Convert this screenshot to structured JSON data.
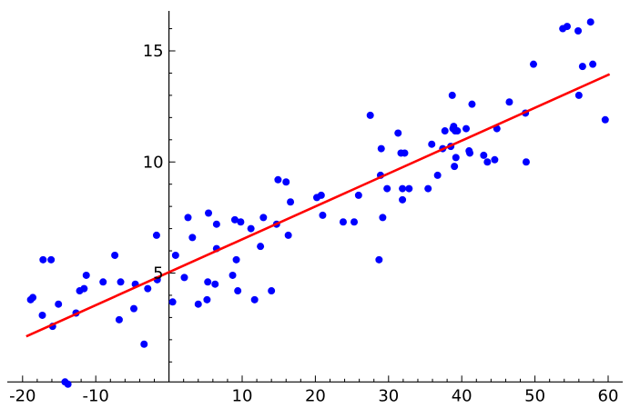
{
  "chart_data": {
    "type": "scatter",
    "title": "",
    "xlabel": "",
    "ylabel": "",
    "xlim": [
      -21,
      62
    ],
    "ylim": [
      0.1,
      16.8
    ],
    "x_ticks": [
      -20,
      -10,
      10,
      20,
      30,
      40,
      50,
      60
    ],
    "x_tick_labels": [
      "-20",
      "-10",
      "10",
      "20",
      "30",
      "40",
      "50",
      "60"
    ],
    "y_ticks": [
      5,
      10,
      15
    ],
    "y_tick_labels": [
      "5",
      "10",
      "15"
    ],
    "grid": false,
    "legend": "none",
    "axes_cross_at": {
      "x": 0,
      "y": 0.1
    },
    "colors": {
      "points": "#0000ff",
      "fit_line": "#ff0000",
      "axes": "#000000"
    },
    "series": [
      {
        "kind": "points",
        "x": [
          -18.9,
          -18.6,
          -17.3,
          -17.2,
          -16.1,
          -15.9,
          -15.1,
          -14.2,
          -13.8,
          -12.7,
          -12.2,
          -11.6,
          -11.3,
          -9,
          -7.4,
          -6.8,
          -6.6,
          -4.8,
          -4.6,
          -3.4,
          -2.9,
          -1.7,
          -1.6,
          0.5,
          0.9,
          2.1,
          2.6,
          3.2,
          4,
          5.2,
          5.3,
          5.4,
          6.3,
          6.5,
          6.5,
          8.7,
          9,
          9.2,
          9.4,
          9.8,
          11.2,
          11.7,
          12.5,
          12.9,
          14,
          14.7,
          14.9,
          16,
          16.3,
          16.6,
          20.2,
          20.8,
          21,
          23.8,
          25.3,
          25.9,
          27.5,
          28.7,
          28.9,
          29,
          29.2,
          29.8,
          31.3,
          31.7,
          31.9,
          31.9,
          32.2,
          32.8,
          35.4,
          35.9,
          36.7,
          37.4,
          37.7,
          38.5,
          38.7,
          38.8,
          38.9,
          39,
          39.1,
          39.2,
          39.4,
          40.6,
          41,
          41.1,
          41.4,
          43,
          43.5,
          44.5,
          44.8,
          46.5,
          48.7,
          48.8,
          49.8,
          53.8,
          54.4,
          55.9,
          56,
          56.5,
          57.6,
          57.9,
          59.6
        ],
        "y": [
          3.8,
          3.9,
          3.1,
          5.6,
          5.6,
          2.6,
          3.6,
          0.1,
          0,
          3.2,
          4.2,
          4.3,
          4.9,
          4.6,
          5.8,
          2.9,
          4.6,
          3.4,
          4.5,
          1.8,
          4.3,
          6.7,
          4.7,
          3.7,
          5.8,
          4.8,
          7.5,
          6.6,
          3.6,
          3.8,
          4.6,
          7.7,
          4.5,
          6.1,
          7.2,
          4.9,
          7.4,
          5.6,
          4.2,
          7.3,
          7,
          3.8,
          6.2,
          7.5,
          4.2,
          7.2,
          9.2,
          9.1,
          6.7,
          8.2,
          8.4,
          8.5,
          7.6,
          7.3,
          7.3,
          8.5,
          12.1,
          5.6,
          9.4,
          10.6,
          7.5,
          8.8,
          11.3,
          10.4,
          8.8,
          8.3,
          10.4,
          8.8,
          8.8,
          10.8,
          9.4,
          10.6,
          11.4,
          10.7,
          13,
          11.5,
          11.6,
          9.8,
          11.4,
          10.2,
          11.4,
          11.5,
          10.5,
          10.4,
          12.6,
          10.3,
          10,
          10.1,
          11.5,
          12.7,
          12.2,
          10,
          14.4,
          16,
          16.1,
          15.9,
          13,
          14.3,
          16.3,
          14.4,
          11.9
        ]
      },
      {
        "kind": "fit_line",
        "x": [
          -19.5,
          60.2
        ],
        "y": [
          2.15,
          13.95
        ]
      }
    ]
  }
}
